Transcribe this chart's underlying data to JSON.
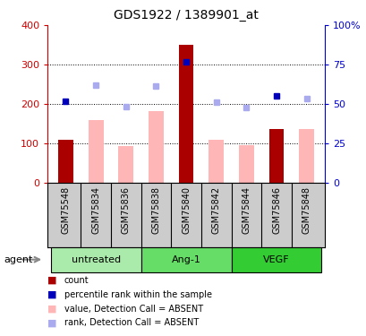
{
  "title": "GDS1922 / 1389901_at",
  "samples": [
    "GSM75548",
    "GSM75834",
    "GSM75836",
    "GSM75838",
    "GSM75840",
    "GSM75842",
    "GSM75844",
    "GSM75846",
    "GSM75848"
  ],
  "groups": [
    {
      "label": "untreated",
      "indices": [
        0,
        1,
        2
      ],
      "color": "#AAEAAA"
    },
    {
      "label": "Ang-1",
      "indices": [
        3,
        4,
        5
      ],
      "color": "#66DD66"
    },
    {
      "label": "VEGF",
      "indices": [
        6,
        7,
        8
      ],
      "color": "#33CC33"
    }
  ],
  "count_values": [
    110,
    null,
    null,
    null,
    350,
    null,
    null,
    137,
    null
  ],
  "absent_bar_values": [
    null,
    160,
    93,
    183,
    null,
    110,
    96,
    null,
    137
  ],
  "rank_present": [
    208,
    null,
    null,
    null,
    308,
    null,
    null,
    222,
    null
  ],
  "rank_absent": [
    null,
    248,
    193,
    246,
    null,
    205,
    192,
    null,
    215
  ],
  "count_color": "#AA0000",
  "absent_bar_color": "#FFB6B6",
  "rank_present_color": "#0000BB",
  "rank_absent_color": "#AAAAEE",
  "ylim_left": [
    0,
    400
  ],
  "ylim_right": [
    0,
    100
  ],
  "yticks_left": [
    0,
    100,
    200,
    300,
    400
  ],
  "yticks_right": [
    0,
    25,
    50,
    75,
    100
  ],
  "ytick_labels_left": [
    "0",
    "100",
    "200",
    "300",
    "400"
  ],
  "ytick_labels_right": [
    "0",
    "25",
    "50",
    "75",
    "100%"
  ],
  "left_axis_color": "#CC0000",
  "right_axis_color": "#0000CC",
  "bar_width": 0.5,
  "legend_items": [
    {
      "label": "count",
      "color": "#AA0000",
      "alpha": 1.0
    },
    {
      "label": "percentile rank within the sample",
      "color": "#0000BB",
      "alpha": 1.0
    },
    {
      "label": "value, Detection Call = ABSENT",
      "color": "#FFB6B6",
      "alpha": 1.0
    },
    {
      "label": "rank, Detection Call = ABSENT",
      "color": "#AAAAEE",
      "alpha": 1.0
    }
  ],
  "sample_box_color": "#CCCCCC",
  "fig_bg": "#FFFFFF"
}
